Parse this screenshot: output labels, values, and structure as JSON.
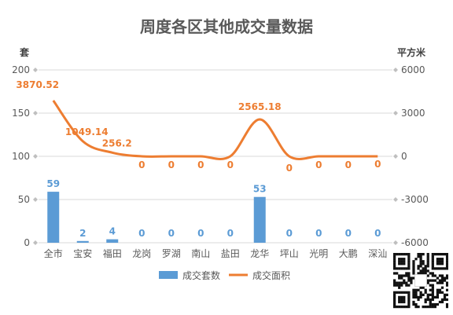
{
  "chart_data": {
    "type": "bar",
    "title": "周度各区其他成交量数据",
    "y_left_label": "套",
    "y_right_label": "平方米",
    "categories": [
      "全市",
      "宝安",
      "福田",
      "龙岗",
      "罗湖",
      "南山",
      "盐田",
      "龙华",
      "坪山",
      "光明",
      "大鹏",
      "深汕"
    ],
    "y_left_ticks": [
      "200",
      "150",
      "100",
      "50",
      "0"
    ],
    "y_right_ticks": [
      "6000",
      "3000",
      "0",
      "-3000",
      "-6000"
    ],
    "ylim_left": [
      0,
      200
    ],
    "ylim_right": [
      -6000,
      6000
    ],
    "series": [
      {
        "name": "成交套数",
        "type": "bar",
        "axis": "left",
        "values": [
          59,
          2,
          4,
          0,
          0,
          0,
          0,
          53,
          0,
          0,
          0,
          0
        ],
        "labels": [
          "59",
          "2",
          "4",
          "0",
          "0",
          "0",
          "0",
          "53",
          "0",
          "0",
          "0",
          "0"
        ]
      },
      {
        "name": "成交面积",
        "type": "line",
        "axis": "right",
        "values": [
          3870.52,
          1049.14,
          256.2,
          0,
          0,
          0,
          0,
          2565.18,
          0,
          0,
          0,
          0
        ],
        "labels": [
          "3870.52",
          "1049.14",
          "256.2",
          "0",
          "0",
          "0",
          "0",
          "2565.18",
          "0",
          "0",
          "0",
          "0"
        ]
      }
    ],
    "legend_position": "bottom",
    "colors": {
      "bar": "#5b9bd5",
      "line": "#ed7d31",
      "grid": "#d9d9d9",
      "title": "#595959",
      "axis_text": "#595959"
    }
  }
}
